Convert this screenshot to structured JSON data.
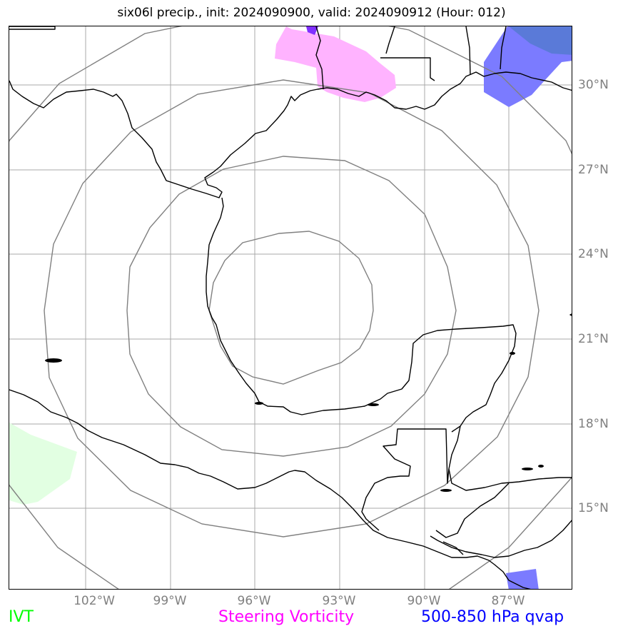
{
  "title": "six06l precip., init: 2024090900, valid: 2024090912 (Hour: 012)",
  "lon_labels": [
    "102°W",
    "99°W",
    "96°W",
    "93°W",
    "90°W",
    "87°W"
  ],
  "lat_labels": [
    "30°N",
    "27°N",
    "24°N",
    "21°N",
    "18°N",
    "15°N"
  ],
  "legend": {
    "ivt": "IVT",
    "steering_vorticity": "Steering Vorticity",
    "qvap": "500-850 hPa qvap"
  },
  "colors": {
    "ivt": "#00ff00",
    "steering_vorticity": "#ff00ff",
    "qvap": "#0000ff",
    "ivt_fill": "#e2ffe2",
    "vorticity_fill": "#ffb3ff",
    "qvap_fill": "#7b7bff",
    "grid": "#a0a0a0",
    "range_rings": "#808080",
    "axis_labels": "#808080"
  },
  "map": {
    "storm_center": {
      "lon": -94.8,
      "lat": 22.7
    },
    "range_rings_count": 4
  }
}
